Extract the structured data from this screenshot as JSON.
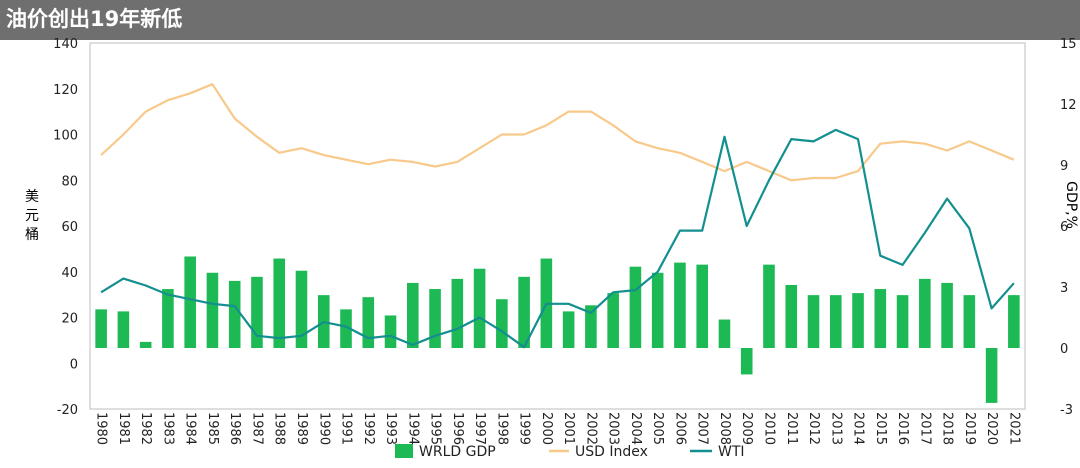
{
  "header": {
    "title": "油价创出19年新低"
  },
  "chart_data": {
    "type": "bar+line",
    "categories": [
      "1980",
      "1981",
      "1982",
      "1983",
      "1984",
      "1985",
      "1986",
      "1987",
      "1988",
      "1989",
      "1990",
      "1991",
      "1992",
      "1993",
      "1994",
      "1995",
      "1996",
      "1997",
      "1998",
      "1999",
      "2000",
      "2001",
      "2002",
      "2003",
      "2004",
      "2005",
      "2006",
      "2007",
      "2008",
      "2009",
      "2010",
      "2011",
      "2012",
      "2013",
      "2014",
      "2015",
      "2016",
      "2017",
      "2018",
      "2019",
      "2020",
      "2021"
    ],
    "series": [
      {
        "name": "WRLD GDP",
        "type": "bar",
        "axis": "right",
        "color": "#1db954",
        "values": [
          1.9,
          1.8,
          0.3,
          2.9,
          4.5,
          3.7,
          3.3,
          3.5,
          4.4,
          3.8,
          2.6,
          1.9,
          2.5,
          1.6,
          3.2,
          2.9,
          3.4,
          3.9,
          2.4,
          3.5,
          4.4,
          1.8,
          2.1,
          2.7,
          4.0,
          3.7,
          4.2,
          4.1,
          1.4,
          -1.3,
          4.1,
          3.1,
          2.6,
          2.6,
          2.7,
          2.9,
          2.6,
          3.4,
          3.2,
          2.6,
          -2.7,
          2.6
        ]
      },
      {
        "name": "USD Index",
        "type": "line",
        "axis": "left",
        "color": "#f8c98b",
        "values": [
          91,
          100,
          110,
          115,
          118,
          122,
          107,
          99,
          92,
          94,
          91,
          89,
          87,
          89,
          88,
          86,
          88,
          94,
          100,
          100,
          104,
          110,
          110,
          104,
          97,
          94,
          92,
          88,
          84,
          88,
          84,
          80,
          81,
          81,
          84,
          96,
          97,
          96,
          93,
          97,
          93,
          89
        ]
      },
      {
        "name": "WTI",
        "type": "line",
        "axis": "left",
        "color": "#138f8f",
        "values": [
          31,
          37,
          34,
          30,
          28,
          26,
          25,
          12,
          11,
          12,
          18,
          16,
          11,
          12,
          8,
          12,
          15,
          20,
          14,
          7,
          26,
          26,
          22,
          31,
          32,
          40,
          58,
          58,
          99,
          60,
          80,
          98,
          97,
          102,
          98,
          47,
          43,
          57,
          72,
          59,
          24,
          35
        ]
      }
    ],
    "ylim": [
      -20,
      140
    ],
    "yticks": [
      -20,
      0,
      20,
      40,
      60,
      80,
      100,
      120,
      140
    ],
    "y2lim": [
      -3,
      15
    ],
    "y2ticks": [
      -3,
      0,
      3,
      6,
      9,
      12,
      15
    ],
    "ylabel": "美元/桶",
    "y2label": "GDP,%",
    "legend": {
      "placement": "bottom",
      "items": [
        "WRLD GDP",
        "USD Index",
        "WTI"
      ]
    },
    "grid": false
  }
}
